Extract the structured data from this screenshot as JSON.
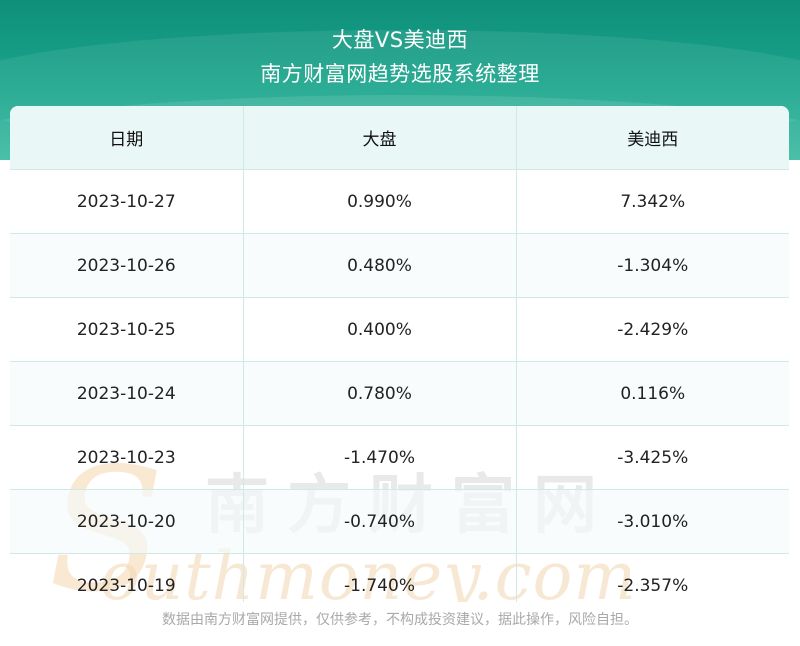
{
  "header": {
    "title_line1": "大盘VS美迪西",
    "title_line2": "南方财富网趋势选股系统整理"
  },
  "table": {
    "columns": [
      "日期",
      "大盘",
      "美迪西"
    ],
    "rows": [
      [
        "2023-10-27",
        "0.990%",
        "7.342%"
      ],
      [
        "2023-10-26",
        "0.480%",
        "-1.304%"
      ],
      [
        "2023-10-25",
        "0.400%",
        "-2.429%"
      ],
      [
        "2023-10-24",
        "0.780%",
        "0.116%"
      ],
      [
        "2023-10-23",
        "-1.470%",
        "-3.425%"
      ],
      [
        "2023-10-20",
        "-0.740%",
        "-3.010%"
      ],
      [
        "2023-10-19",
        "-1.740%",
        "-2.357%"
      ]
    ]
  },
  "watermark": {
    "cn": "南方财富网",
    "en": "outhmoney.com",
    "s": "S"
  },
  "footer": {
    "disclaimer": "数据由南方财富网提供，仅供参考，不构成投资建议，据此操作，风险自担。"
  },
  "colors": {
    "header_teal": "#1aa58c",
    "table_header_bg": "#e9f8f6",
    "grid_line": "#cfe9e4"
  }
}
